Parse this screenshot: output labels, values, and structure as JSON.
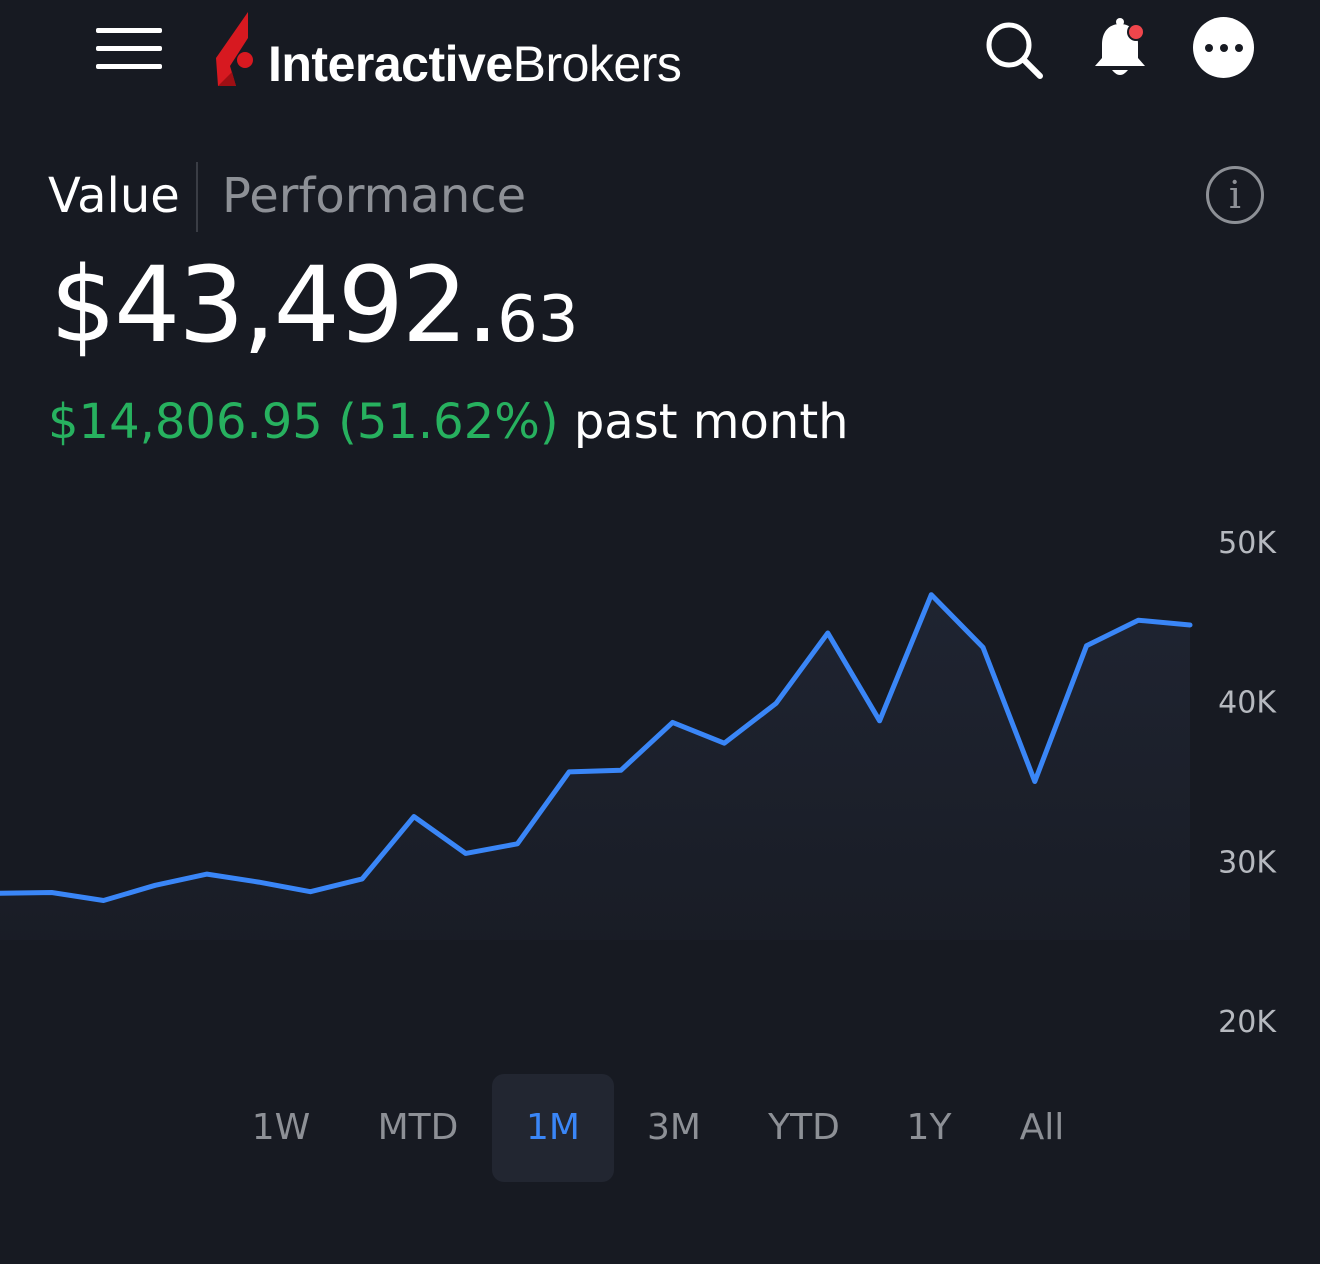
{
  "header": {
    "brand_bold": "Interactive",
    "brand_regular": "Brokers",
    "icons": [
      "menu-icon",
      "search-icon",
      "bell-icon",
      "more-icon"
    ],
    "notification_dot_color": "#f0464c",
    "brand_mark_color": "#d71920"
  },
  "tabs": [
    {
      "label": "Value",
      "active": true
    },
    {
      "label": "Performance",
      "active": false
    }
  ],
  "info_icon": "i",
  "portfolio": {
    "value_main": "$43,492.",
    "value_cents": "63",
    "change_amount": "$14,806.95 (51.62%)",
    "change_period": "past month",
    "change_color": "#27b15f"
  },
  "chart_data": {
    "type": "area",
    "ylim": [
      20000,
      50000
    ],
    "yticks": [
      "50K",
      "40K",
      "30K",
      "20K"
    ],
    "ytick_values": [
      50000,
      40000,
      30000,
      20000
    ],
    "line_color": "#3a86f7",
    "grid": false,
    "values": [
      28000,
      28050,
      27550,
      28500,
      29200,
      28700,
      28100,
      28900,
      32800,
      30500,
      31100,
      35600,
      35700,
      38700,
      37400,
      39900,
      44300,
      38800,
      46700,
      43400,
      35000,
      43500,
      45100,
      44800
    ]
  },
  "ranges": [
    {
      "label": "1W",
      "active": false
    },
    {
      "label": "MTD",
      "active": false
    },
    {
      "label": "1M",
      "active": true
    },
    {
      "label": "3M",
      "active": false
    },
    {
      "label": "YTD",
      "active": false
    },
    {
      "label": "1Y",
      "active": false
    },
    {
      "label": "All",
      "active": false
    }
  ]
}
